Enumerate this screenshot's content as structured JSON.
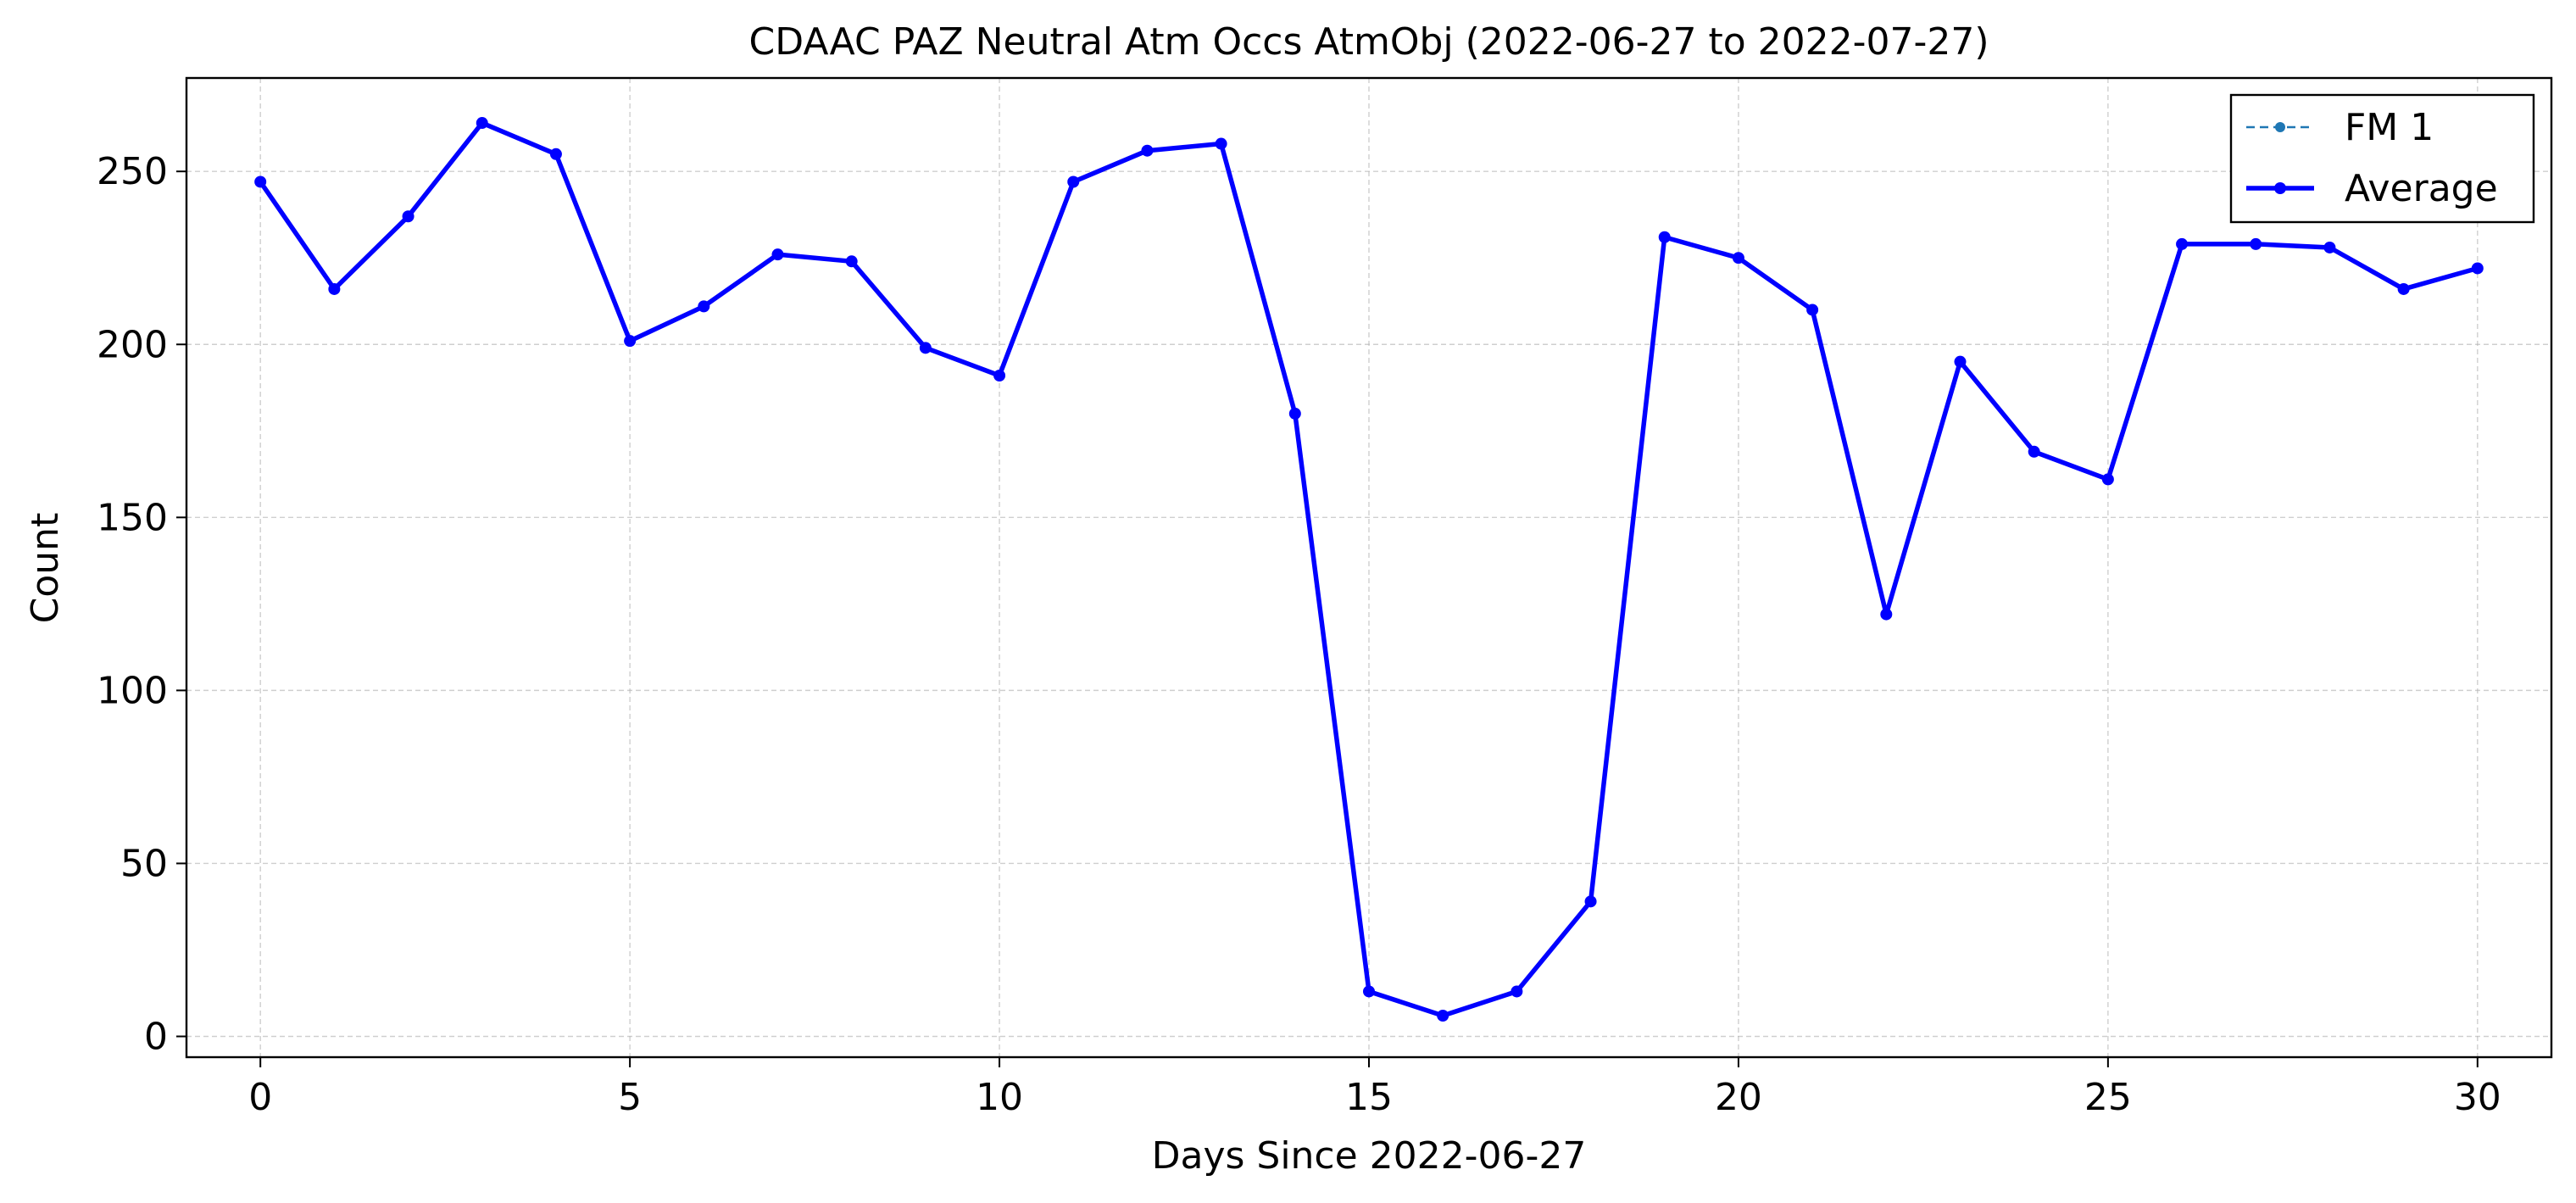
{
  "chart_data": {
    "type": "line",
    "title": "CDAAC PAZ Neutral Atm Occs AtmObj (2022-06-27 to 2022-07-27)",
    "xlabel": "Days Since 2022-06-27",
    "ylabel": "Count",
    "xlim": [
      -1,
      31
    ],
    "ylim": [
      -6,
      277
    ],
    "xticks": [
      0,
      5,
      10,
      15,
      20,
      25,
      30
    ],
    "yticks": [
      0,
      50,
      100,
      150,
      200,
      250
    ],
    "grid": true,
    "legend_position": "top-right",
    "x": [
      0,
      1,
      2,
      3,
      4,
      5,
      6,
      7,
      8,
      9,
      10,
      11,
      12,
      13,
      14,
      15,
      16,
      17,
      18,
      19,
      20,
      21,
      22,
      23,
      24,
      25,
      26,
      27,
      28,
      29,
      30
    ],
    "series": [
      {
        "name": "FM 1",
        "style": "dashed",
        "color": "#1f77b4",
        "values": [
          247,
          216,
          237,
          264,
          255,
          201,
          211,
          226,
          224,
          199,
          191,
          247,
          256,
          258,
          180,
          13,
          6,
          13,
          39,
          231,
          225,
          210,
          122,
          195,
          169,
          161,
          229,
          229,
          228,
          216,
          222
        ]
      },
      {
        "name": "Average",
        "style": "solid",
        "color": "#0000ff",
        "values": [
          247,
          216,
          237,
          264,
          255,
          201,
          211,
          226,
          224,
          199,
          191,
          247,
          256,
          258,
          180,
          13,
          6,
          13,
          39,
          231,
          225,
          210,
          122,
          195,
          169,
          161,
          229,
          229,
          228,
          216,
          222
        ]
      }
    ]
  }
}
